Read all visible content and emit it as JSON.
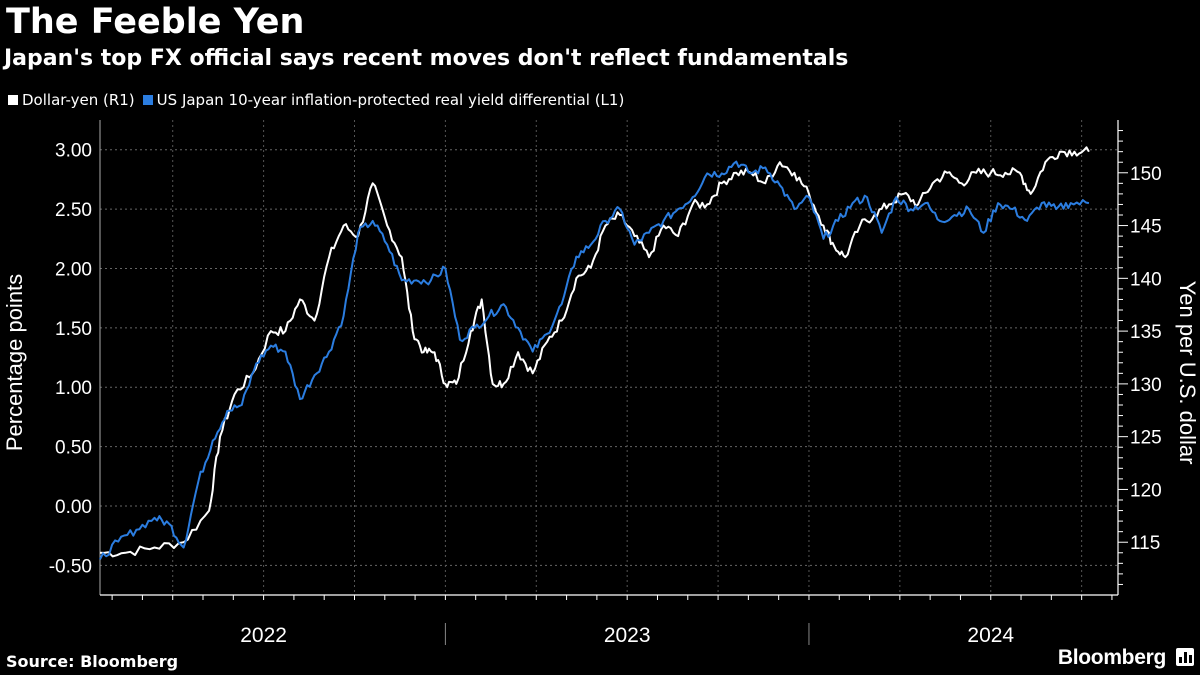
{
  "title": "The Feeble Yen",
  "subtitle": "Japan's top FX official says recent moves don't reflect fundamentals",
  "legend": [
    {
      "label": "Dollar-yen (R1)",
      "color": "#ffffff"
    },
    {
      "label": "US Japan 10-year inflation-protected real yield differential (L1)",
      "color": "#2b7de0"
    }
  ],
  "source": "Source: Bloomberg",
  "brand": "Bloomberg",
  "chart_data": {
    "type": "line",
    "ylabel_left": "Percentage points",
    "ylabel_right": "Yen per U.S. dollar",
    "y_left": {
      "min": -0.75,
      "max": 3.25,
      "ticks": [
        -0.5,
        0.0,
        0.5,
        1.0,
        1.5,
        2.0,
        2.5,
        3.0
      ],
      "tick_labels": [
        "-0.50",
        "0.00",
        "0.50",
        "1.00",
        "1.50",
        "2.00",
        "2.50",
        "3.00"
      ]
    },
    "y_right": {
      "min": 110,
      "max": 155,
      "ticks": [
        115,
        120,
        125,
        130,
        135,
        140,
        145,
        150
      ],
      "tick_labels": [
        "115",
        "120",
        "125",
        "130",
        "135",
        "140",
        "145",
        "150"
      ]
    },
    "x_range": [
      2021.55,
      2024.35
    ],
    "year_labels": [
      {
        "label": "2022",
        "x": 2022.0
      },
      {
        "label": "2023",
        "x": 2023.0
      },
      {
        "label": "2024",
        "x": 2024.0
      }
    ],
    "year_boundaries": [
      2022.5,
      2023.5
    ],
    "grid": true,
    "series": [
      {
        "name": "Dollar-yen (R1)",
        "axis": "right",
        "color": "#ffffff",
        "x": [
          2021.55,
          2021.62,
          2021.7,
          2021.78,
          2021.85,
          2021.88,
          2021.92,
          2021.97,
          2022.02,
          2022.06,
          2022.1,
          2022.14,
          2022.18,
          2022.22,
          2022.26,
          2022.3,
          2022.34,
          2022.38,
          2022.41,
          2022.44,
          2022.47,
          2022.5,
          2022.53,
          2022.57,
          2022.6,
          2022.63,
          2022.66,
          2022.7,
          2022.74,
          2022.78,
          2022.82,
          2022.86,
          2022.9,
          2022.94,
          2022.98,
          2023.02,
          2023.06,
          2023.1,
          2023.14,
          2023.18,
          2023.22,
          2023.26,
          2023.3,
          2023.34,
          2023.38,
          2023.42,
          2023.46,
          2023.5,
          2023.54,
          2023.57,
          2023.6,
          2023.64,
          2023.68,
          2023.72,
          2023.76,
          2023.8,
          2023.84,
          2023.88,
          2023.92,
          2023.96,
          2024.0,
          2024.04,
          2024.08,
          2024.11,
          2024.15,
          2024.19,
          2024.23,
          2024.27
        ],
        "values": [
          114,
          114,
          114.5,
          115,
          118,
          125,
          129,
          131,
          135,
          135,
          138,
          136,
          142,
          145,
          144,
          149,
          145,
          142,
          135,
          133,
          133,
          130,
          130,
          135,
          138,
          130,
          130,
          133,
          131,
          134,
          136,
          140,
          141,
          145,
          146,
          144,
          142,
          145,
          144,
          147,
          147,
          149,
          150,
          150,
          149,
          151,
          150,
          148,
          145,
          143,
          142,
          145,
          146,
          147,
          148,
          147,
          149,
          150,
          149,
          150,
          150,
          150,
          150,
          148,
          151,
          152,
          152,
          152
        ]
      },
      {
        "name": "US Japan 10-year inflation-protected real yield differential (L1)",
        "axis": "left",
        "color": "#2b7de0",
        "x": [
          2021.55,
          2021.6,
          2021.65,
          2021.7,
          2021.74,
          2021.78,
          2021.82,
          2021.86,
          2021.9,
          2021.94,
          2021.98,
          2022.02,
          2022.06,
          2022.1,
          2022.14,
          2022.18,
          2022.22,
          2022.26,
          2022.3,
          2022.34,
          2022.38,
          2022.42,
          2022.46,
          2022.5,
          2022.54,
          2022.58,
          2022.62,
          2022.66,
          2022.7,
          2022.74,
          2022.78,
          2022.82,
          2022.86,
          2022.9,
          2022.94,
          2022.98,
          2023.02,
          2023.06,
          2023.1,
          2023.14,
          2023.18,
          2023.22,
          2023.26,
          2023.3,
          2023.34,
          2023.38,
          2023.42,
          2023.46,
          2023.5,
          2023.54,
          2023.58,
          2023.62,
          2023.66,
          2023.7,
          2023.74,
          2023.78,
          2023.82,
          2023.86,
          2023.9,
          2023.94,
          2023.98,
          2024.02,
          2024.06,
          2024.1,
          2024.14,
          2024.18,
          2024.22,
          2024.27
        ],
        "values": [
          -0.45,
          -0.3,
          -0.2,
          -0.1,
          -0.15,
          -0.35,
          0.2,
          0.55,
          0.8,
          0.85,
          1.2,
          1.35,
          1.3,
          0.9,
          1.1,
          1.3,
          1.6,
          2.3,
          2.4,
          2.2,
          1.9,
          1.9,
          1.9,
          2.0,
          1.4,
          1.5,
          1.6,
          1.7,
          1.5,
          1.3,
          1.45,
          1.7,
          2.1,
          2.2,
          2.4,
          2.5,
          2.2,
          2.3,
          2.4,
          2.5,
          2.6,
          2.8,
          2.8,
          2.9,
          2.8,
          2.85,
          2.7,
          2.5,
          2.6,
          2.25,
          2.4,
          2.55,
          2.6,
          2.3,
          2.6,
          2.5,
          2.55,
          2.4,
          2.45,
          2.5,
          2.3,
          2.55,
          2.5,
          2.4,
          2.55,
          2.5,
          2.55,
          2.55
        ]
      }
    ]
  }
}
